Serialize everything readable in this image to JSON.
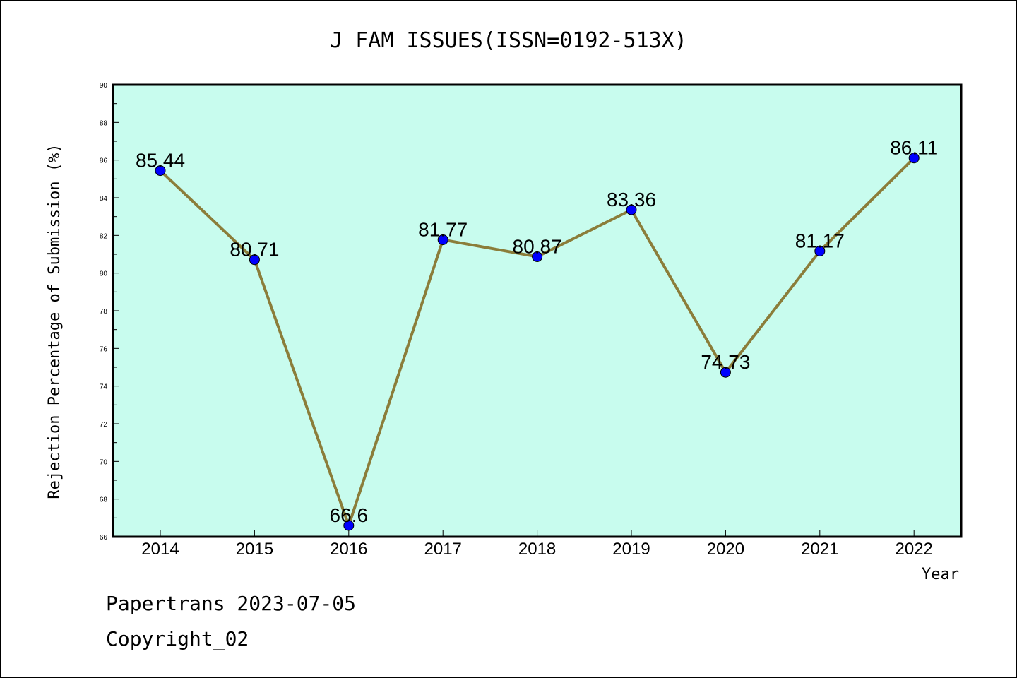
{
  "chart_data": {
    "type": "line",
    "title": "J FAM ISSUES(ISSN=0192-513X)",
    "xlabel": "Year",
    "ylabel": "Rejection Percentage of Submission (%)",
    "categories": [
      "2014",
      "2015",
      "2016",
      "2017",
      "2018",
      "2019",
      "2020",
      "2021",
      "2022"
    ],
    "values": [
      85.44,
      80.71,
      66.6,
      81.77,
      80.87,
      83.36,
      74.73,
      81.17,
      86.11
    ],
    "data_labels": [
      "85.44",
      "80.71",
      "66.6",
      "81.77",
      "80.87",
      "83.36",
      "74.73",
      "81.17",
      "86.11"
    ],
    "ylim": [
      66,
      90
    ],
    "yticks": [
      66,
      68,
      70,
      72,
      74,
      76,
      78,
      80,
      82,
      84,
      86,
      88,
      90
    ],
    "grid": false,
    "colors": {
      "plot_background": "#c8fcee",
      "line": "#8b7d3a",
      "marker": "#0000ff"
    }
  },
  "footer": {
    "line1": "Papertrans 2023-07-05",
    "line2": "Copyright_02"
  }
}
